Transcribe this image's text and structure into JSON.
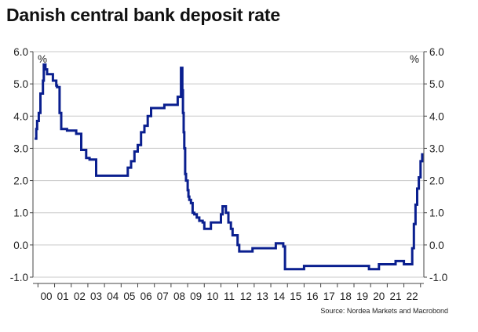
{
  "title": "Danish central bank deposit rate",
  "source": "Source: Nordea Markets and Macrobond",
  "chart_data": {
    "type": "line",
    "title": "Danish central bank deposit rate",
    "ylabel_left": "%",
    "ylabel_right": "%",
    "ylim": [
      -1.0,
      6.0
    ],
    "yticks": [
      "6.0",
      "5.0",
      "4.0",
      "3.0",
      "2.0",
      "1.0",
      "0.0",
      "-1.0"
    ],
    "yticks_values": [
      6,
      5,
      4,
      3,
      2,
      1,
      0,
      -1
    ],
    "xlim": [
      1999.7,
      2023.2
    ],
    "xtick_labels": [
      "00",
      "01",
      "02",
      "03",
      "04",
      "05",
      "06",
      "07",
      "08",
      "09",
      "10",
      "11",
      "12",
      "13",
      "14",
      "15",
      "16",
      "17",
      "18",
      "19",
      "20",
      "21",
      "22"
    ],
    "xtick_years": [
      2000,
      2001,
      2002,
      2003,
      2004,
      2005,
      2006,
      2007,
      2008,
      2009,
      2010,
      2011,
      2012,
      2013,
      2014,
      2015,
      2016,
      2017,
      2018,
      2019,
      2020,
      2021,
      2022
    ],
    "grid": true,
    "color": "#0a1f8f",
    "series": [
      {
        "x": [
          1999.8,
          1999.9,
          1999.95,
          2000.05,
          2000.15,
          2000.3,
          2000.35,
          2000.45,
          2000.55,
          2000.75,
          2000.9,
          2001.1,
          2001.15,
          2001.3,
          2001.4,
          2001.5,
          2001.75,
          2002.0,
          2002.3,
          2002.6,
          2002.9,
          2003.1,
          2003.5,
          2003.8,
          2004.1,
          2005.0,
          2005.4,
          2005.6,
          2005.8,
          2006.0,
          2006.2,
          2006.4,
          2006.6,
          2006.8,
          2007.0,
          2007.2,
          2007.4,
          2007.6,
          2008.0,
          2008.4,
          2008.6,
          2008.68,
          2008.72,
          2008.76,
          2008.8,
          2008.85,
          2008.9,
          2009.0,
          2009.05,
          2009.1,
          2009.2,
          2009.3,
          2009.4,
          2009.55,
          2009.7,
          2009.9,
          2010.0,
          2010.2,
          2010.4,
          2010.6,
          2011.0,
          2011.1,
          2011.3,
          2011.45,
          2011.6,
          2011.7,
          2011.8,
          2012.0,
          2012.1,
          2012.6,
          2012.9,
          2013.0,
          2013.5,
          2014.0,
          2014.3,
          2014.55,
          2014.75,
          2014.85,
          2015.1,
          2015.3,
          2015.6,
          2016.0,
          2017.0,
          2018.0,
          2019.0,
          2019.55,
          2019.9,
          2020.0,
          2020.5,
          2021.0,
          2021.5,
          2022.0,
          2022.4,
          2022.5,
          2022.6,
          2022.7,
          2022.8,
          2022.9,
          2023.0,
          2023.1
        ],
        "y": [
          3.3,
          3.6,
          3.85,
          4.1,
          4.7,
          5.1,
          5.6,
          5.45,
          5.3,
          5.3,
          5.1,
          4.95,
          4.9,
          4.1,
          3.6,
          3.6,
          3.55,
          3.55,
          3.45,
          2.95,
          2.7,
          2.65,
          2.15,
          2.15,
          2.15,
          2.15,
          2.4,
          2.6,
          2.9,
          3.1,
          3.5,
          3.7,
          4.0,
          4.25,
          4.25,
          4.25,
          4.25,
          4.35,
          4.35,
          4.6,
          5.5,
          4.8,
          4.1,
          3.5,
          3.0,
          2.2,
          2.0,
          1.7,
          1.5,
          1.4,
          1.3,
          1.0,
          0.95,
          0.85,
          0.75,
          0.7,
          0.5,
          0.5,
          0.7,
          0.7,
          0.95,
          1.2,
          1.0,
          0.7,
          0.5,
          0.3,
          0.3,
          0.0,
          -0.2,
          -0.2,
          -0.1,
          -0.1,
          -0.1,
          -0.1,
          0.05,
          0.05,
          -0.05,
          -0.75,
          -0.75,
          -0.75,
          -0.75,
          -0.65,
          -0.65,
          -0.65,
          -0.65,
          -0.65,
          -0.75,
          -0.75,
          -0.6,
          -0.6,
          -0.5,
          -0.6,
          -0.6,
          -0.1,
          0.65,
          1.25,
          1.75,
          2.1,
          2.6,
          2.85
        ]
      }
    ]
  }
}
